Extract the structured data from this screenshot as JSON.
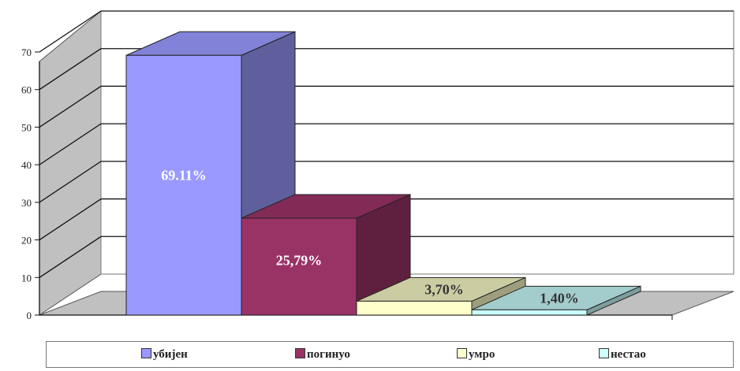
{
  "chart_data": {
    "type": "bar",
    "categories": [
      "убијен",
      "погинуо",
      "умро",
      "нестао"
    ],
    "values": [
      69.11,
      25.79,
      3.7,
      1.4
    ],
    "data_labels": [
      "69.11%",
      "25,79%",
      "3,70%",
      "1,40%"
    ],
    "ylim": [
      0,
      70
    ],
    "yticks": [
      "0",
      "10",
      "20",
      "30",
      "40",
      "50",
      "60",
      "70"
    ],
    "grid": true,
    "legend_position": "bottom",
    "colors": {
      "убијен": "#9999ff",
      "погинуо": "#993366",
      "умро": "#ffffcc",
      "нестао": "#ccffff"
    },
    "label_colors": [
      "#ffffff",
      "#ffffff",
      "#333333",
      "#333333"
    ]
  }
}
